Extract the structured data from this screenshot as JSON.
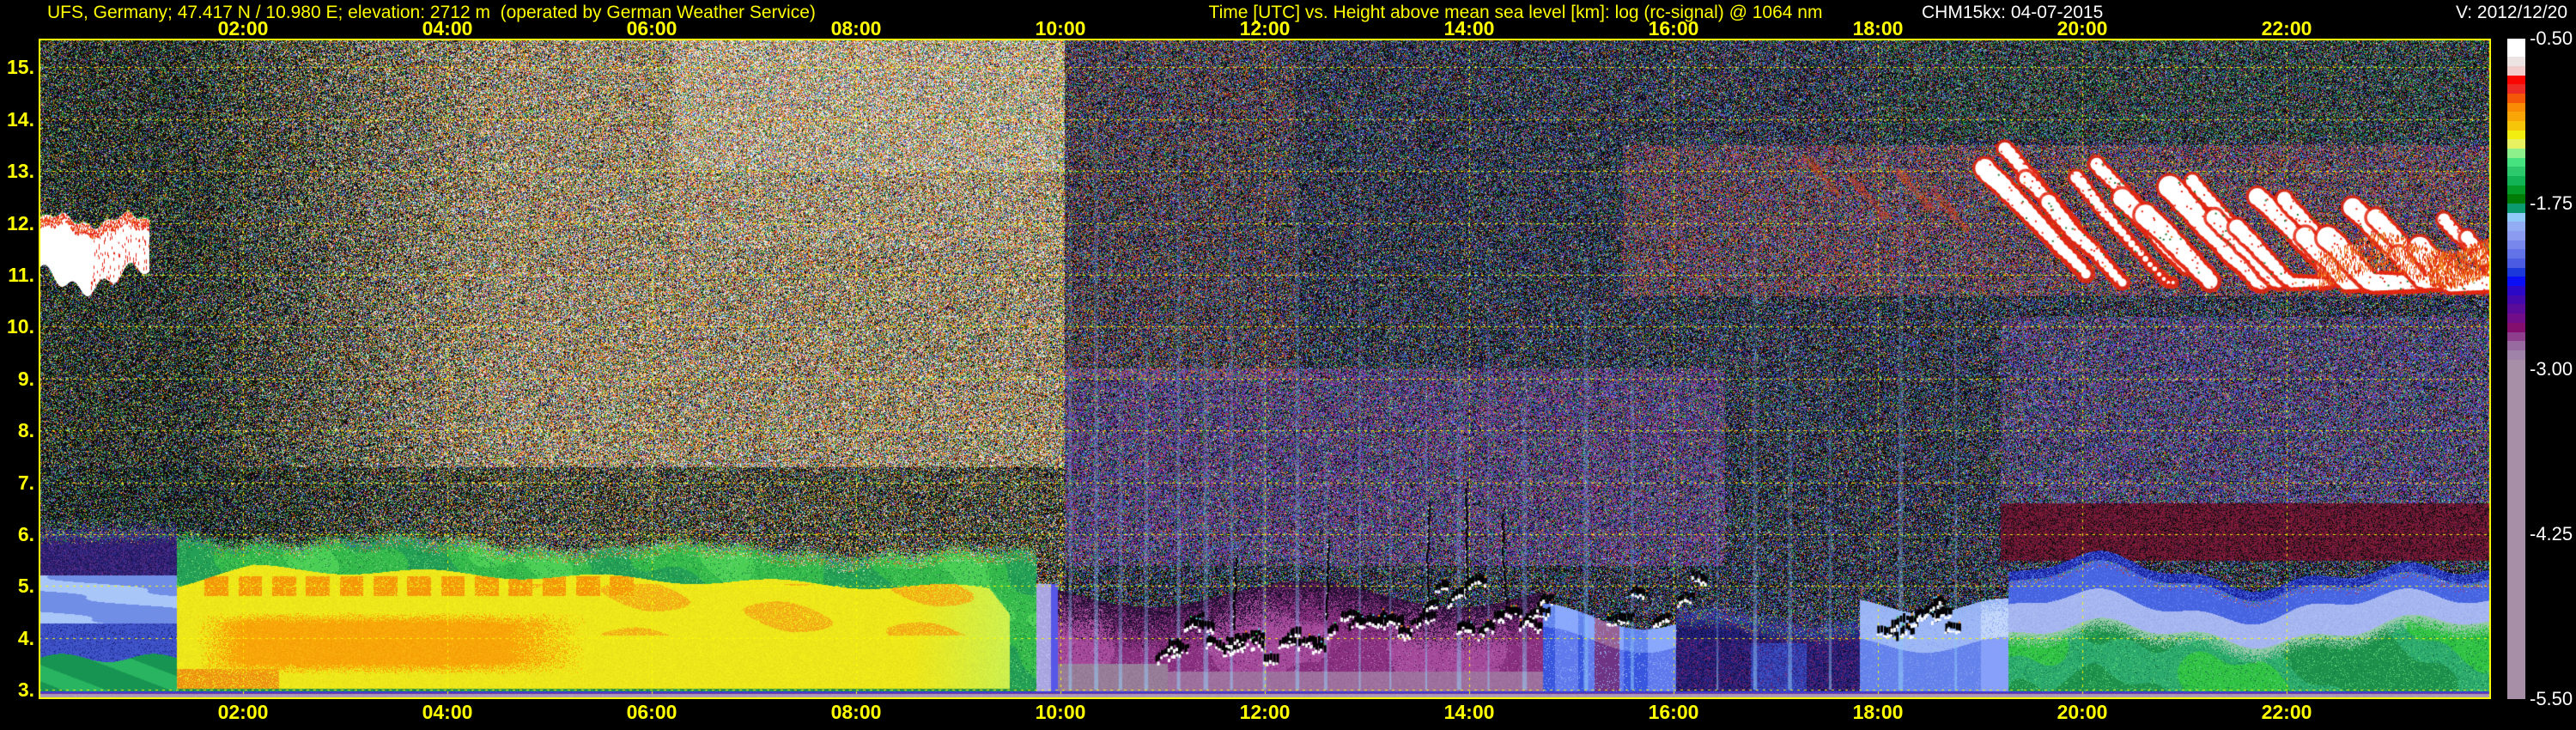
{
  "header": {
    "station_info": "UFS, Germany; 47.417 N / 10.980 E; elevation: 2712 m  (operated by German Weather Service)",
    "title": "Time [UTC] vs. Height above mean sea level [km]: log (rc-signal) @ 1064 nm",
    "instrument_date": "CHM15kx: 04-07-2015",
    "version": "V: 2012/12/20"
  },
  "colors": {
    "axis_label_yellow": "#ffff00",
    "header_white": "#ffffff",
    "frame_yellow": "#ffff00",
    "background": "#000000"
  },
  "axes": {
    "x_tick_labels": [
      "02:00",
      "04:00",
      "06:00",
      "08:00",
      "10:00",
      "12:00",
      "14:00",
      "16:00",
      "18:00",
      "20:00",
      "22:00"
    ],
    "x_tick_hours": [
      2,
      4,
      6,
      8,
      10,
      12,
      14,
      16,
      18,
      20,
      22
    ],
    "y_tick_labels": [
      "15.",
      "14.",
      "13.",
      "12.",
      "11.",
      "10.",
      "9.",
      "8.",
      "7.",
      "6.",
      "5.",
      "4.",
      "3."
    ],
    "y_tick_km": [
      15,
      14,
      13,
      12,
      11,
      10,
      9,
      8,
      7,
      6,
      5,
      4,
      3
    ]
  },
  "chart_data": {
    "type": "heatmap",
    "title": "Time [UTC] vs. Height above mean sea level [km]: log (rc-signal) @ 1064 nm",
    "x_axis": {
      "label": "Time [UTC]",
      "range_hours": [
        0,
        24
      ],
      "tick_interval_hours": 2
    },
    "y_axis": {
      "label": "Height above mean sea level [km]",
      "range_km": [
        2.82,
        15.55
      ]
    },
    "z_axis": {
      "label": "log (rc-signal)",
      "tick_values": [
        -0.5,
        -1.75,
        -3.0,
        -4.25,
        -5.5
      ],
      "tick_labels": [
        "-0.50",
        "-1.75",
        "-3.00",
        "-4.25",
        "-5.50"
      ]
    },
    "grid": {
      "horizontal_km": [
        3,
        4,
        5,
        6,
        7,
        8,
        9,
        10,
        11,
        12,
        13,
        14,
        15
      ],
      "vertical_hours": [
        2,
        4,
        6,
        8,
        10,
        12,
        14,
        16,
        18,
        20,
        22
      ],
      "style": "dashed yellow"
    },
    "colorbar": {
      "position": "right",
      "segments": [
        "#ffffff",
        "#ffffff",
        "#ece4e2",
        "#f2cccb",
        "#fb0503",
        "#ee2a25",
        "#f55708",
        "#fa8b05",
        "#f9a407",
        "#f6c50a",
        "#f1ee10",
        "#e8f260",
        "#8ef08a",
        "#45e27f",
        "#2bc96c",
        "#12b354",
        "#049b28",
        "#007d06",
        "#0b9a70",
        "#8ec9f8",
        "#93adf5",
        "#8b9cf0",
        "#7787ec",
        "#6272e7",
        "#4c5ce2",
        "#1b38da",
        "#0a0ef5",
        "#2b08c5",
        "#4409ac",
        "#5b0b9a",
        "#710d88",
        "#830e6e",
        "#8d3f8d",
        "#986ba0",
        "#a083a8",
        "#a78fa7"
      ],
      "segments_span_z": [
        -0.5,
        -3.0
      ],
      "lower_uniform_color": "#a78fa7",
      "lower_span_z": [
        -3.0,
        -5.5
      ]
    },
    "features": [
      {
        "name": "nocturnal-low-level-layer",
        "t_hours": [
          0,
          1.35
        ],
        "km": [
          2.9,
          6.25
        ],
        "desc": "indigo/blue layer, light-blue wavy bands 4.2-5.2 km, green layer below 3.6 km"
      },
      {
        "name": "boundary-layer-plume",
        "t_hours": [
          1.35,
          9.8
        ],
        "km": [
          2.9,
          6.1
        ],
        "desc": "strong backscatter plume: yellow core 3.1-5.3 km, orange maximum 3.3-4.5 km (01:40-05:20), green fringe to ~6 km, sharp end just before 10:00"
      },
      {
        "name": "morning-cloud",
        "t_hours": [
          0,
          1.08
        ],
        "km": [
          10.9,
          12.2
        ],
        "desc": "white cloud band with red fringe"
      },
      {
        "name": "solar-background-noise",
        "t_hours": [
          4.5,
          10.04
        ],
        "km": [
          6,
          15.55
        ],
        "desc": "bright white speckle noise after sunrise, brown/orange speckle 02:00-04:30, dark speckle before 01:30"
      },
      {
        "name": "regime-change",
        "t_hours": [
          10.04
        ],
        "desc": "abrupt switch to darker blue/green speckle noise at 10:00"
      },
      {
        "name": "purple-aerosol-region",
        "t_hours": [
          10.0,
          14.7
        ],
        "km": [
          2.9,
          4.9
        ],
        "desc": "magenta/purple haze, gray-mauve below 3.5 km until 11:00, purple haze noise up to ~9 km"
      },
      {
        "name": "convective-cloud-bases",
        "t_hours": [
          10.9,
          14.8
        ],
        "km": [
          3.6,
          5.1
        ],
        "desc": "small black clouds with white undersides along 3.6-5 km"
      },
      {
        "name": "precipitation-streaks",
        "t_hours": [
          10.05,
          18.8
        ],
        "desc": "thin light-blue vertical streaks"
      },
      {
        "name": "blue-patches",
        "t_hours": [
          14.7,
          16.0
        ],
        "km": [
          2.9,
          4.7
        ],
        "desc": "cornflower/blue columns separated by purple"
      },
      {
        "name": "dark-period",
        "t_hours": [
          16.0,
          17.8
        ],
        "km": [
          2.9,
          4.6
        ],
        "desc": "dark navy region with magenta specks"
      },
      {
        "name": "light-blue-layer",
        "t_hours": [
          17.8,
          19.27
        ],
        "km": [
          2.9,
          4.8
        ],
        "desc": "bright cornflower layer with pale tops, cloud squiggles 18:00-18:40"
      },
      {
        "name": "evening-green-layer",
        "t_hours": [
          19.27,
          24
        ],
        "km": [
          2.9,
          4.5
        ],
        "desc": "green/teal layer; periwinkle band ~4.3-4.9 km; blue band to ~5.5 km; maroon speckle band 5.5-6.6 km"
      },
      {
        "name": "evening-cirrus",
        "t_hours": [
          19.0,
          24
        ],
        "km": [
          10.9,
          13.6
        ],
        "desc": "slanted white cloud streaks with red/orange fringes descending toward 24:00"
      },
      {
        "name": "faint-cirrus-wisps",
        "t_hours": [
          17.2,
          19.0
        ],
        "km": [
          12.0,
          13.4
        ],
        "desc": "faint red wisps before cirrus"
      }
    ],
    "cloud_base_clusters": [
      {
        "t0": 10.9,
        "t1": 12.15,
        "km0": 3.6,
        "km1": 4.35,
        "count": 11
      },
      {
        "t0": 12.15,
        "t1": 13.35,
        "km0": 3.8,
        "km1": 4.6,
        "count": 10
      },
      {
        "t0": 13.35,
        "t1": 14.75,
        "km0": 4.0,
        "km1": 5.1,
        "count": 12
      },
      {
        "t0": 15.25,
        "t1": 16.35,
        "km0": 4.3,
        "km1": 5.6,
        "count": 5
      },
      {
        "t0": 17.95,
        "t1": 18.7,
        "km0": 4.1,
        "km1": 4.6,
        "count": 7
      }
    ],
    "tall_slashes": [
      {
        "t": 11.73,
        "km0": 4.2,
        "km1": 5.6
      },
      {
        "t": 12.62,
        "km0": 4.4,
        "km1": 5.9
      },
      {
        "t": 13.6,
        "km0": 4.6,
        "km1": 6.6
      },
      {
        "t": 13.98,
        "km0": 4.8,
        "km1": 7.0
      },
      {
        "t": 14.33,
        "km0": 4.7,
        "km1": 6.4
      }
    ],
    "streak_hours": [
      10.08,
      10.33,
      10.57,
      10.82,
      11.14,
      11.4,
      11.66,
      11.98,
      12.3,
      12.58,
      12.92,
      13.22,
      13.57,
      13.88,
      14.18,
      14.52,
      15.12,
      15.58,
      16.42,
      16.78,
      17.12,
      17.52,
      18.2,
      18.75
    ]
  }
}
